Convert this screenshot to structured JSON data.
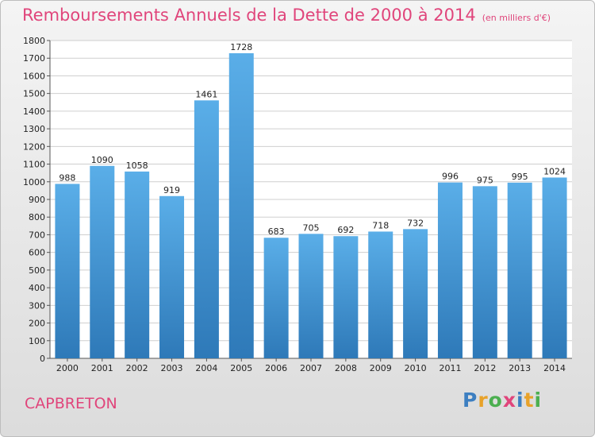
{
  "title": "Remboursements Annuels de la Dette de 2000 à 2014",
  "subtitle": "(en milliers d'€)",
  "town": "CAPBRETON",
  "logo": {
    "text": "Proxiti",
    "colors": [
      "#3d7fc1",
      "#e8a22a",
      "#4caf50",
      "#e0457b",
      "#3d7fc1",
      "#e8a22a",
      "#4caf50"
    ]
  },
  "colors": {
    "bar_light": "#5aaee8",
    "bar_dark": "#2e79b8",
    "title": "#e0457b",
    "grid": "#cfcfcf"
  },
  "chart_data": {
    "type": "bar",
    "title": "Remboursements Annuels de la Dette de 2000 à 2014",
    "subtitle": "(en milliers d'€)",
    "categories": [
      "2000",
      "2001",
      "2002",
      "2003",
      "2004",
      "2005",
      "2006",
      "2007",
      "2008",
      "2009",
      "2010",
      "2011",
      "2012",
      "2013",
      "2014"
    ],
    "values": [
      988,
      1090,
      1058,
      919,
      1461,
      1728,
      683,
      705,
      692,
      718,
      732,
      996,
      975,
      995,
      1024
    ],
    "ylim": [
      0,
      1800
    ],
    "yticks": [
      0,
      100,
      200,
      300,
      400,
      500,
      600,
      700,
      800,
      900,
      1000,
      1100,
      1200,
      1300,
      1400,
      1500,
      1600,
      1700,
      1800
    ],
    "grid": true,
    "data_labels": true
  }
}
